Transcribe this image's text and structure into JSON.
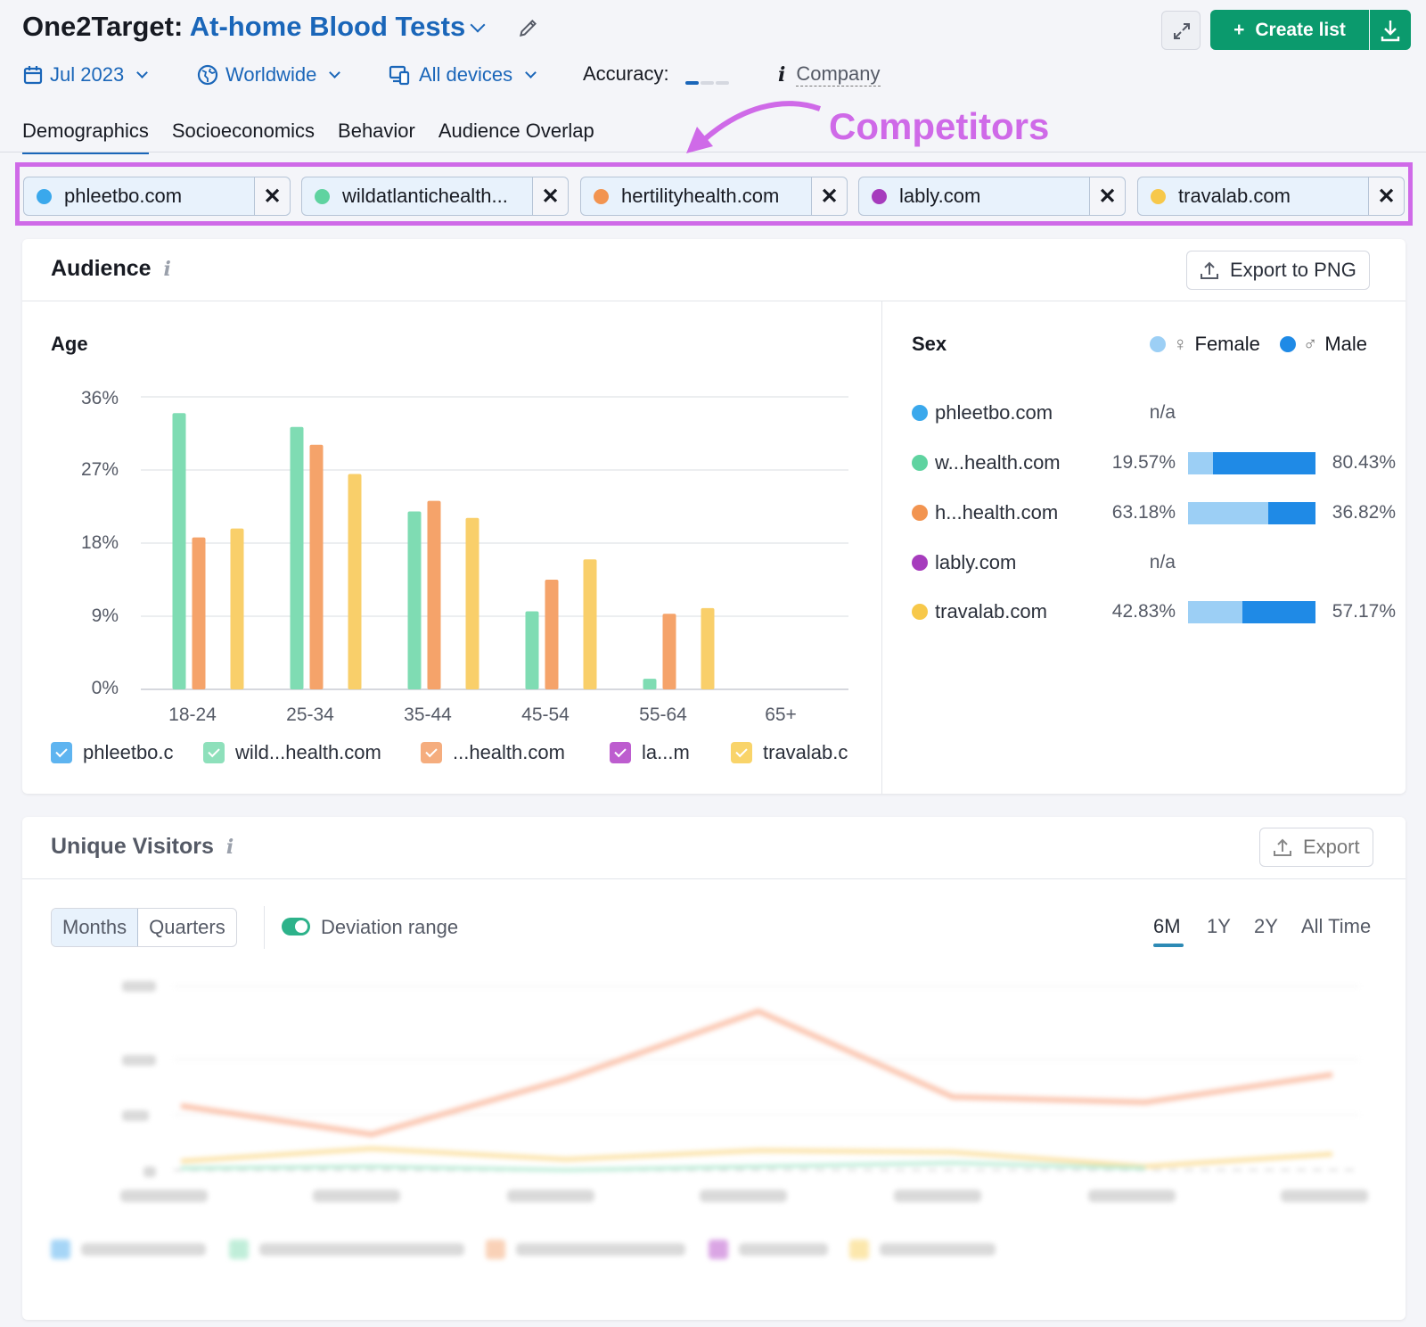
{
  "header": {
    "app": "One2Target:",
    "project": "At-home Blood Tests",
    "create_label": "Create list",
    "filters": {
      "date": "Jul 2023",
      "region": "Worldwide",
      "devices": "All devices"
    },
    "accuracy_label": "Accuracy:",
    "company_label": "Company"
  },
  "tabs": [
    "Demographics",
    "Socioeconomics",
    "Behavior",
    "Audience Overlap"
  ],
  "annotation": "Competitors",
  "competitors": [
    {
      "name": "phleetbo.com",
      "color": "#3aa8ec"
    },
    {
      "name": "wildatlantichealth...",
      "color": "#5fd3a0"
    },
    {
      "name": "hertilityhealth.com",
      "color": "#f29450"
    },
    {
      "name": "lably.com",
      "color": "#a63cbd"
    },
    {
      "name": "travalab.com",
      "color": "#f7c84a"
    }
  ],
  "audience": {
    "title": "Audience",
    "export_label": "Export to PNG",
    "age_title": "Age",
    "sex_title": "Sex",
    "female_label": "Female",
    "male_label": "Male",
    "legend": [
      "phleetbo.c",
      "wild...health.com",
      "...health.com",
      "la...m",
      "travalab.c"
    ],
    "sex_rows": [
      {
        "name": "phleetbo.com",
        "color": "#3aa8ec",
        "female": "n/a",
        "male": "",
        "f": null
      },
      {
        "name": "w...health.com",
        "color": "#5fd3a0",
        "female": "19.57%",
        "male": "80.43%",
        "f": 0.1957
      },
      {
        "name": "h...health.com",
        "color": "#f29450",
        "female": "63.18%",
        "male": "36.82%",
        "f": 0.6318
      },
      {
        "name": "lably.com",
        "color": "#a63cbd",
        "female": "n/a",
        "male": "",
        "f": null
      },
      {
        "name": "travalab.com",
        "color": "#f7c84a",
        "female": "42.83%",
        "male": "57.17%",
        "f": 0.4283
      }
    ]
  },
  "chart_data": {
    "type": "bar",
    "categories": [
      "18-24",
      "25-34",
      "35-44",
      "45-54",
      "55-64",
      "65+"
    ],
    "yticks": [
      "36%",
      "27%",
      "18%",
      "9%",
      "0%"
    ],
    "ylim": [
      0,
      36
    ],
    "series": [
      {
        "name": "wild...health.com",
        "color": "#7fdcb3",
        "values": [
          34,
          32.3,
          21.9,
          9.6,
          1.3,
          0
        ]
      },
      {
        "name": "...health.com",
        "color": "#f5a36a",
        "values": [
          18.7,
          30.1,
          23.2,
          13.5,
          9.3,
          0
        ]
      },
      {
        "name": "travalab.c",
        "color": "#f9cf6a",
        "values": [
          19.8,
          26.5,
          21.1,
          16,
          10,
          0
        ]
      }
    ]
  },
  "unique_visitors": {
    "title": "Unique Visitors",
    "export_label": "Export",
    "months_label": "Months",
    "quarters_label": "Quarters",
    "deviation_label": "Deviation range",
    "ranges": [
      "6M",
      "1Y",
      "2Y",
      "All Time"
    ]
  }
}
